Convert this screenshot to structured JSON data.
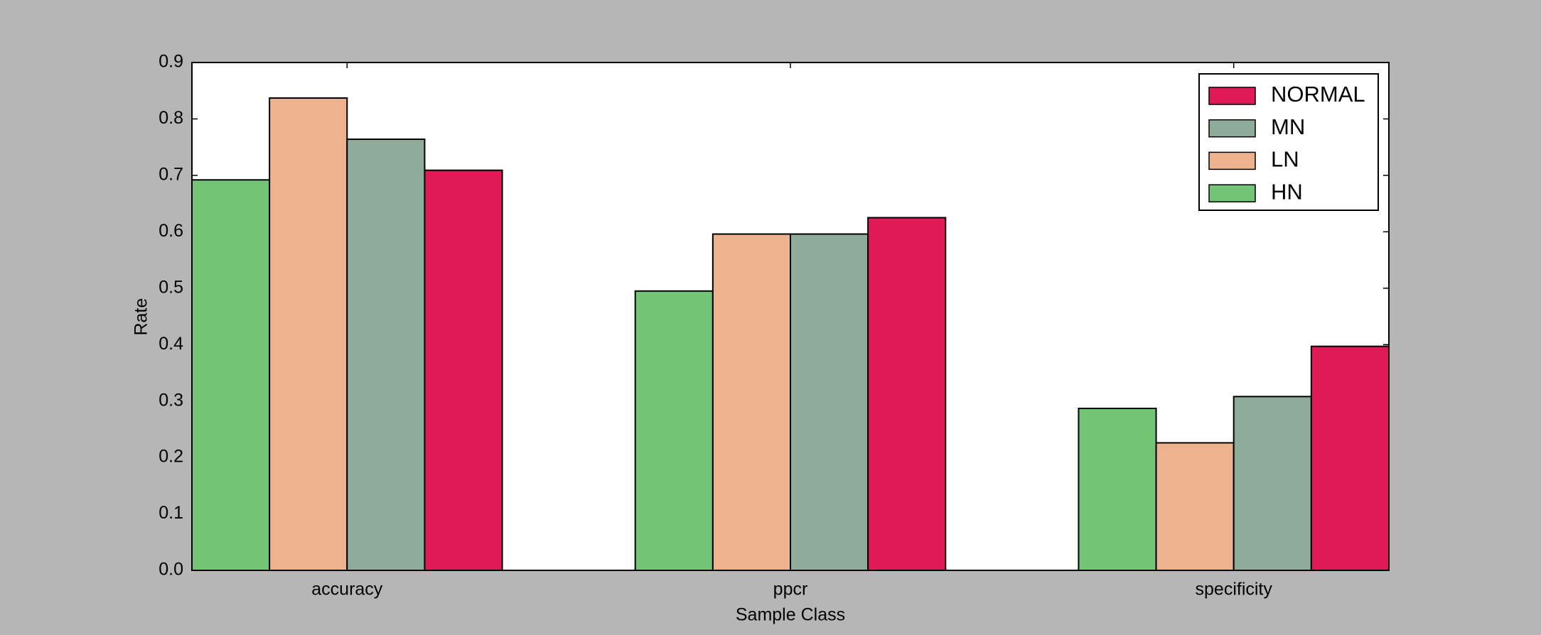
{
  "chart_data": {
    "type": "bar",
    "xlabel": "Sample Class",
    "ylabel": "Rate",
    "categories": [
      "accuracy",
      "ppcr",
      "specificity"
    ],
    "series": [
      {
        "name": "HN",
        "color": "#74c476",
        "values": [
          0.692,
          0.495,
          0.287
        ]
      },
      {
        "name": "LN",
        "color": "#edb38e",
        "values": [
          0.837,
          0.596,
          0.226
        ]
      },
      {
        "name": "MN",
        "color": "#8fab9a",
        "values": [
          0.764,
          0.596,
          0.308
        ]
      },
      {
        "name": "NORMAL",
        "color": "#e01a56",
        "values": [
          0.709,
          0.625,
          0.397
        ]
      }
    ],
    "ylim": [
      0,
      0.9
    ],
    "yticks": [
      0.0,
      0.1,
      0.2,
      0.3,
      0.4,
      0.5,
      0.6,
      0.7,
      0.8,
      0.9
    ],
    "legend": "upper right"
  }
}
